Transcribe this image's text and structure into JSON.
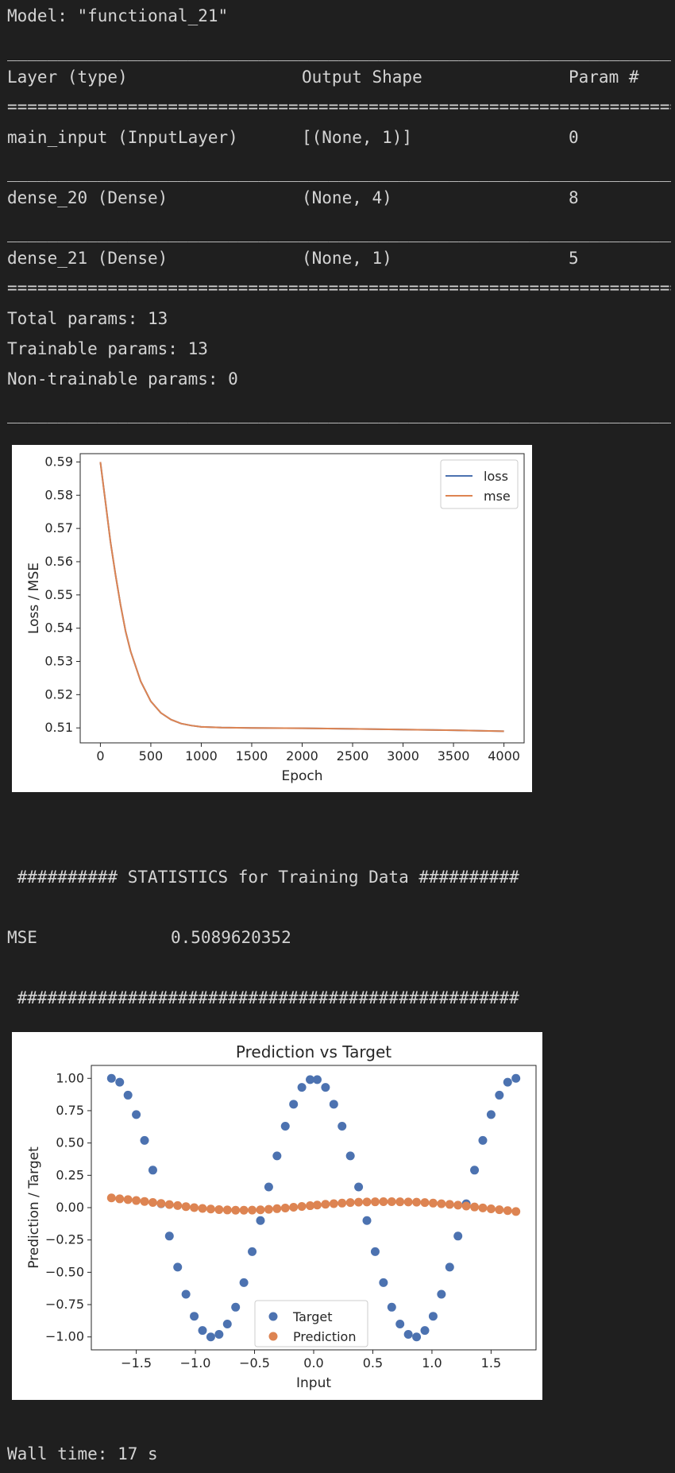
{
  "summary": {
    "model_line": "Model: \"functional_21\"",
    "underscore_rule": "__________________________________________________________________________________________________",
    "equals_rule": "==================================================================================================",
    "headers": {
      "layer": "Layer (type)",
      "shape": "Output Shape",
      "param": "Param #"
    },
    "rows": [
      {
        "layer": "main_input (InputLayer)",
        "shape": "[(None, 1)]",
        "param": "0"
      },
      {
        "layer": "dense_20 (Dense)",
        "shape": "(None, 4)",
        "param": "8"
      },
      {
        "layer": "dense_21 (Dense)",
        "shape": "(None, 1)",
        "param": "5"
      }
    ],
    "total": "Total params: 13",
    "trainable": "Trainable params: 13",
    "non_trainable": "Non-trainable params: 0"
  },
  "stats": {
    "header": " ########## STATISTICS for Training Data ##########",
    "mse_label": "MSE",
    "mse_value": "0.5089620352",
    "footer": " ##################################################"
  },
  "wall_time": "Wall time: 17 s",
  "chart_data": [
    {
      "type": "line",
      "title": "",
      "xlabel": "Epoch",
      "ylabel": "Loss / MSE",
      "xlim": [
        -200,
        4200
      ],
      "ylim": [
        0.5055,
        0.5925
      ],
      "xticks": [
        0,
        500,
        1000,
        1500,
        2000,
        2500,
        3000,
        3500,
        4000
      ],
      "yticks": [
        0.51,
        0.52,
        0.53,
        0.54,
        0.55,
        0.56,
        0.57,
        0.58,
        0.59
      ],
      "legend_position": "top-right",
      "grid": false,
      "series": [
        {
          "name": "loss",
          "color": "#4c72b0",
          "x": [
            0,
            50,
            100,
            150,
            200,
            250,
            300,
            400,
            500,
            600,
            700,
            800,
            900,
            1000,
            1200,
            1500,
            2000,
            2500,
            3000,
            3500,
            4000
          ],
          "y": [
            0.59,
            0.578,
            0.566,
            0.556,
            0.547,
            0.539,
            0.533,
            0.524,
            0.518,
            0.5145,
            0.5125,
            0.5113,
            0.5107,
            0.5103,
            0.5101,
            0.51,
            0.5099,
            0.5097,
            0.5095,
            0.5093,
            0.509
          ]
        },
        {
          "name": "mse",
          "color": "#dd8452",
          "x": [
            0,
            50,
            100,
            150,
            200,
            250,
            300,
            400,
            500,
            600,
            700,
            800,
            900,
            1000,
            1200,
            1500,
            2000,
            2500,
            3000,
            3500,
            4000
          ],
          "y": [
            0.59,
            0.578,
            0.566,
            0.556,
            0.547,
            0.539,
            0.533,
            0.524,
            0.518,
            0.5145,
            0.5125,
            0.5113,
            0.5107,
            0.5103,
            0.5101,
            0.51,
            0.5099,
            0.5097,
            0.5095,
            0.5093,
            0.509
          ]
        }
      ]
    },
    {
      "type": "scatter",
      "title": "Prediction vs Target",
      "xlabel": "Input",
      "ylabel": "Prediction / Target",
      "xlim": [
        -1.88,
        1.88
      ],
      "ylim": [
        -1.1,
        1.1
      ],
      "xticks": [
        -1.5,
        -1.0,
        -0.5,
        0.0,
        0.5,
        1.0,
        1.5
      ],
      "xticklabels": [
        "−1.5",
        "−1.0",
        "−0.5",
        "0.0",
        "0.5",
        "1.0",
        "1.5"
      ],
      "yticks": [
        1.0,
        0.75,
        0.5,
        0.25,
        0.0,
        -0.25,
        -0.5,
        -0.75,
        -1.0
      ],
      "yticklabels": [
        "1.00",
        "0.75",
        "0.50",
        "0.25",
        "0.00",
        "−0.25",
        "−0.50",
        "−0.75",
        "−1.00"
      ],
      "legend_position": "lower center",
      "grid": false,
      "series": [
        {
          "name": "Target",
          "color": "#4c72b0",
          "x": [
            -1.71,
            -1.64,
            -1.57,
            -1.5,
            -1.43,
            -1.36,
            -1.29,
            -1.22,
            -1.15,
            -1.08,
            -1.01,
            -0.94,
            -0.87,
            -0.8,
            -0.73,
            -0.66,
            -0.59,
            -0.52,
            -0.45,
            -0.38,
            -0.31,
            -0.24,
            -0.17,
            -0.1,
            -0.03,
            0.03,
            0.1,
            0.17,
            0.24,
            0.31,
            0.38,
            0.45,
            0.52,
            0.59,
            0.66,
            0.73,
            0.8,
            0.87,
            0.94,
            1.01,
            1.08,
            1.15,
            1.22,
            1.29,
            1.36,
            1.43,
            1.5,
            1.57,
            1.64,
            1.71
          ],
          "y": [
            1.0,
            0.97,
            0.87,
            0.72,
            0.52,
            0.29,
            0.03,
            -0.22,
            -0.46,
            -0.67,
            -0.84,
            -0.95,
            -1.0,
            -0.98,
            -0.9,
            -0.77,
            -0.58,
            -0.34,
            -0.1,
            0.16,
            0.4,
            0.63,
            0.8,
            0.93,
            0.99,
            0.99,
            0.93,
            0.8,
            0.63,
            0.4,
            0.16,
            -0.1,
            -0.34,
            -0.58,
            -0.77,
            -0.9,
            -0.98,
            -1.0,
            -0.95,
            -0.84,
            -0.67,
            -0.46,
            -0.22,
            0.03,
            0.29,
            0.52,
            0.72,
            0.87,
            0.97,
            1.0
          ]
        },
        {
          "name": "Prediction",
          "color": "#dd8452",
          "x": [
            -1.71,
            -1.64,
            -1.57,
            -1.5,
            -1.43,
            -1.36,
            -1.29,
            -1.22,
            -1.15,
            -1.08,
            -1.01,
            -0.94,
            -0.87,
            -0.8,
            -0.73,
            -0.66,
            -0.59,
            -0.52,
            -0.45,
            -0.38,
            -0.31,
            -0.24,
            -0.17,
            -0.1,
            -0.03,
            0.03,
            0.1,
            0.17,
            0.24,
            0.31,
            0.38,
            0.45,
            0.52,
            0.59,
            0.66,
            0.73,
            0.8,
            0.87,
            0.94,
            1.01,
            1.08,
            1.15,
            1.22,
            1.29,
            1.36,
            1.43,
            1.5,
            1.57,
            1.64,
            1.71
          ],
          "y": [
            0.075,
            0.068,
            0.062,
            0.055,
            0.048,
            0.04,
            0.032,
            0.024,
            0.016,
            0.008,
            0.0,
            -0.006,
            -0.011,
            -0.015,
            -0.018,
            -0.02,
            -0.02,
            -0.019,
            -0.017,
            -0.013,
            -0.008,
            -0.003,
            0.003,
            0.009,
            0.015,
            0.02,
            0.026,
            0.031,
            0.035,
            0.039,
            0.042,
            0.044,
            0.045,
            0.046,
            0.046,
            0.045,
            0.044,
            0.042,
            0.039,
            0.035,
            0.03,
            0.025,
            0.019,
            0.012,
            0.005,
            -0.002,
            -0.009,
            -0.016,
            -0.023,
            -0.03
          ]
        }
      ]
    }
  ]
}
